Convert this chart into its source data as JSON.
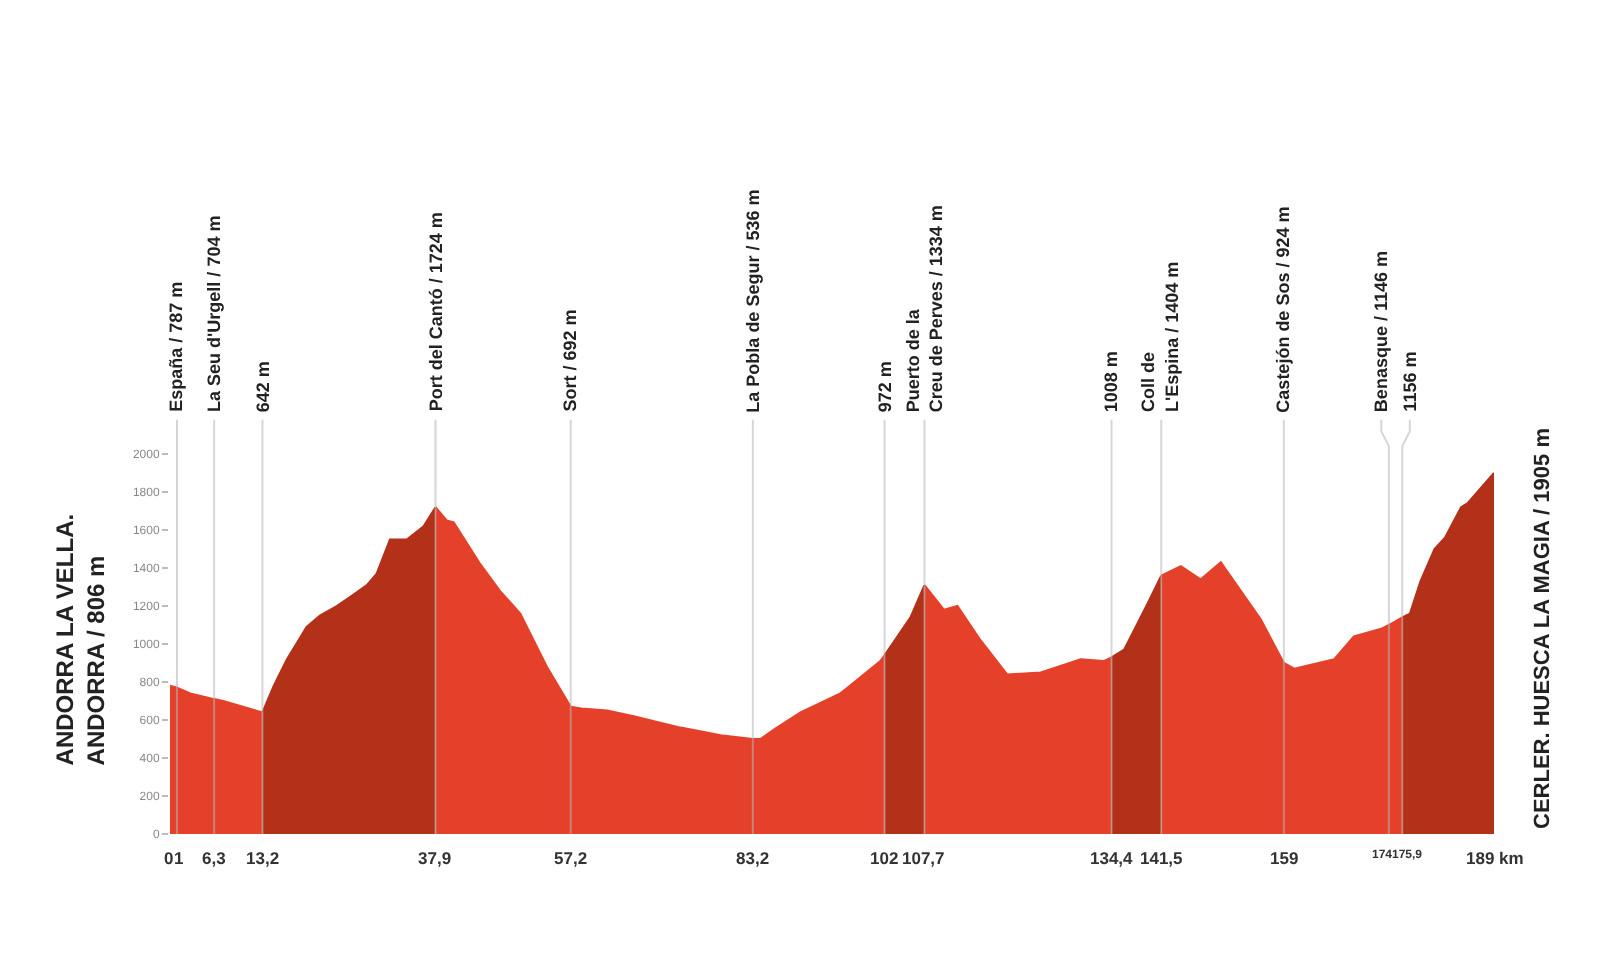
{
  "chart_data": {
    "type": "area",
    "xlim": [
      0,
      189
    ],
    "ylim": [
      0,
      2000
    ],
    "xticks": [
      0,
      1,
      {
        "value": 6.3,
        "label": "6,3"
      },
      {
        "value": 13.2,
        "label": "13,2"
      },
      {
        "value": 37.9,
        "label": "37,9"
      },
      {
        "value": 57.2,
        "label": "57,2"
      },
      {
        "value": 83.2,
        "label": "83,2"
      },
      102,
      {
        "value": 107.7,
        "label": "107,7"
      },
      {
        "value": 134.4,
        "label": "134,4"
      },
      {
        "value": 141.5,
        "label": "141,5"
      },
      159,
      174,
      {
        "value": 175.9,
        "label": "175,9"
      },
      {
        "value": 189,
        "label": "189 km"
      }
    ],
    "yticks": [
      0,
      200,
      400,
      600,
      800,
      1000,
      1200,
      1400,
      1600,
      1800,
      2000
    ],
    "series": [
      {
        "color": "#e5412a",
        "x": [
          0,
          1,
          2.9,
          6.3,
          7.6,
          13.2
        ],
        "values": [
          780,
          770,
          740,
          710,
          700,
          640
        ]
      },
      {
        "color": "#b33019",
        "x": [
          13.2,
          14.8,
          16.7,
          19.5,
          21.4,
          23.8,
          26.2,
          28.1,
          29.5,
          31.4,
          33.8,
          36.2,
          37.9
        ],
        "values": [
          640,
          780,
          920,
          1090,
          1150,
          1200,
          1260,
          1310,
          1370,
          1550,
          1550,
          1620,
          1720
        ]
      },
      {
        "color": "#e5412a",
        "x": [
          37.9,
          39.5,
          40.5,
          44.3,
          47.1,
          50,
          53.8,
          57.2,
          58.7,
          62.4,
          66.2,
          72.9,
          78.6,
          83.2,
          84.3,
          86.2,
          90,
          95.7,
          96.7,
          101.4,
          102
        ],
        "values": [
          1720,
          1650,
          1640,
          1420,
          1280,
          1160,
          880,
          670,
          660,
          650,
          620,
          560,
          520,
          500,
          500,
          550,
          640,
          740,
          770,
          910,
          940
        ]
      },
      {
        "color": "#b33019",
        "x": [
          102,
          105.7,
          107.7
        ],
        "values": [
          940,
          1140,
          1310
        ]
      },
      {
        "color": "#e5412a",
        "x": [
          107.7,
          110.5,
          112.4,
          115.7,
          119.5,
          124.3,
          130,
          133.3,
          134.4
        ],
        "values": [
          1310,
          1180,
          1200,
          1020,
          840,
          850,
          920,
          910,
          930
        ]
      },
      {
        "color": "#b33019",
        "x": [
          134.4,
          136.2,
          139.5,
          141.5
        ],
        "values": [
          930,
          970,
          1210,
          1360
        ]
      },
      {
        "color": "#e5412a",
        "x": [
          141.5,
          144.3,
          147.1,
          150,
          155.7,
          159,
          160.5,
          166.2,
          169,
          172.9,
          174,
          175.9
        ],
        "values": [
          1360,
          1410,
          1340,
          1430,
          1130,
          900,
          870,
          920,
          1040,
          1080,
          1100,
          1140
        ]
      },
      {
        "color": "#b33019",
        "x": [
          175.9,
          177,
          178.5,
          180.5,
          182,
          184.3,
          185.2,
          189
        ],
        "values": [
          1140,
          1160,
          1330,
          1500,
          1560,
          1720,
          1740,
          1900
        ]
      }
    ],
    "ref_lines": [
      {
        "axis": "x",
        "value": 1,
        "label": "España / 787 m"
      },
      {
        "axis": "x",
        "value": 6.3,
        "label": "La Seu d'Urgell / 704 m"
      },
      {
        "axis": "x",
        "value": 13.2,
        "label": "642 m"
      },
      {
        "axis": "x",
        "value": 37.9,
        "label": "Port del Cantó / 1724 m"
      },
      {
        "axis": "x",
        "value": 57.2,
        "label": "Sort / 692 m"
      },
      {
        "axis": "x",
        "value": 83.2,
        "label": "La Pobla de Segur / 536 m"
      },
      {
        "axis": "x",
        "value": 102,
        "label": "972 m"
      },
      {
        "axis": "x",
        "value": 107.7,
        "label": "Puerto de la\nCreu de Perves / 1334 m"
      },
      {
        "axis": "x",
        "value": 134.4,
        "label": "1008 m"
      },
      {
        "axis": "x",
        "value": 141.5,
        "label": "Coll de\nL'Espina / 1404 m"
      },
      {
        "axis": "x",
        "value": 159,
        "label": "Castejón de Sos / 924 m"
      },
      {
        "axis": "x",
        "value": 174,
        "label": "Benasque / 1146 m"
      },
      {
        "axis": "x",
        "value": 175.9,
        "label": "1156 m"
      }
    ],
    "annotations": [
      "ANDORRA LA VELLA.\nANDORRA / 806 m",
      "CERLER. HUESCA LA MAGIA / 1905 m"
    ]
  }
}
